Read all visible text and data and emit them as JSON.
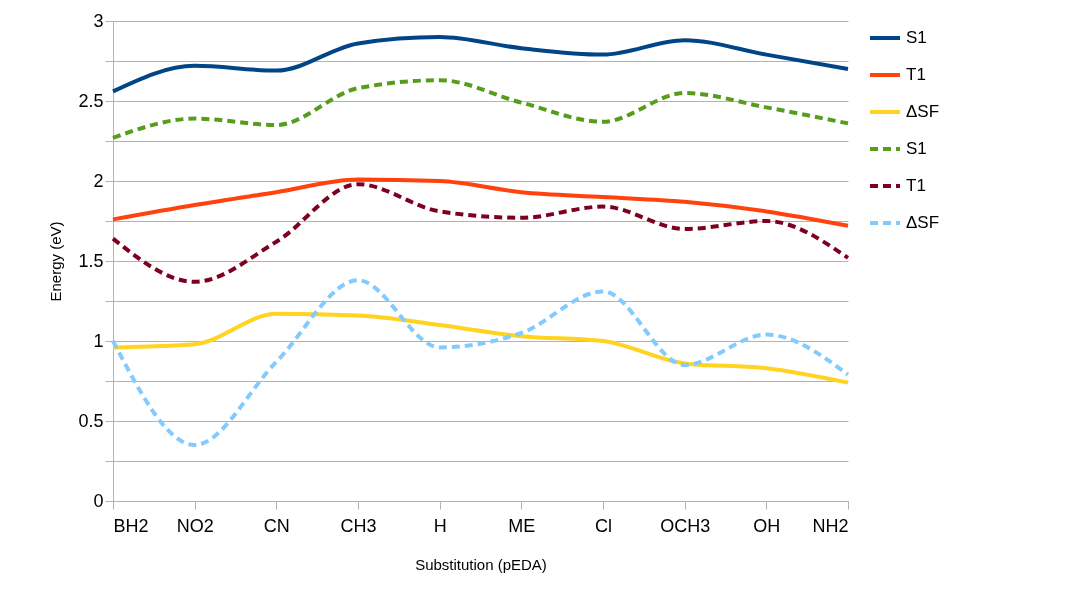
{
  "chart_data": {
    "type": "line",
    "xlabel": "Substitution (pEDA)",
    "ylabel": "Energy (eV)",
    "categories": [
      "BH2",
      "NO2",
      "CN",
      "CH3",
      "H",
      "ME",
      "Cl",
      "OCH3",
      "OH",
      "NH2"
    ],
    "ylim": [
      0,
      3
    ],
    "yticks": [
      0,
      {
        "value": 0.25,
        "label": null
      },
      0.5,
      {
        "value": 0.75,
        "label": null
      },
      1,
      {
        "value": 1.25,
        "label": null
      },
      1.5,
      {
        "value": 1.75,
        "label": null
      },
      2,
      {
        "value": 2.25,
        "label": null
      },
      2.5,
      {
        "value": 2.75,
        "label": null
      },
      3
    ],
    "grid": "y",
    "legend": "right",
    "marker": "none",
    "series": [
      {
        "name": "S1",
        "color": "#004586",
        "line_style": "solid",
        "values": [
          2.56,
          2.72,
          2.69,
          2.86,
          2.9,
          2.83,
          2.79,
          2.88,
          2.79,
          2.7
        ]
      },
      {
        "name": "T1",
        "color": "#ff420e",
        "line_style": "solid",
        "values": [
          1.76,
          1.85,
          1.93,
          2.01,
          2.0,
          1.93,
          1.9,
          1.87,
          1.81,
          1.72
        ]
      },
      {
        "name": "ΔSF",
        "color": "#ffd320",
        "line_style": "solid",
        "values": [
          0.96,
          0.98,
          1.17,
          1.16,
          1.1,
          1.03,
          1.0,
          0.86,
          0.83,
          0.74
        ]
      },
      {
        "name": "S1",
        "color": "#579d1c",
        "line_style": "dashed",
        "values": [
          2.27,
          2.39,
          2.35,
          2.58,
          2.63,
          2.49,
          2.37,
          2.55,
          2.46,
          2.36
        ]
      },
      {
        "name": "T1",
        "color": "#7e0021",
        "line_style": "dashed",
        "values": [
          1.64,
          1.37,
          1.62,
          1.98,
          1.81,
          1.77,
          1.84,
          1.7,
          1.75,
          1.52
        ]
      },
      {
        "name": "ΔSF",
        "color": "#83caff",
        "line_style": "dashed",
        "values": [
          1.0,
          0.35,
          0.87,
          1.38,
          0.96,
          1.05,
          1.31,
          0.85,
          1.04,
          0.79
        ]
      }
    ]
  }
}
